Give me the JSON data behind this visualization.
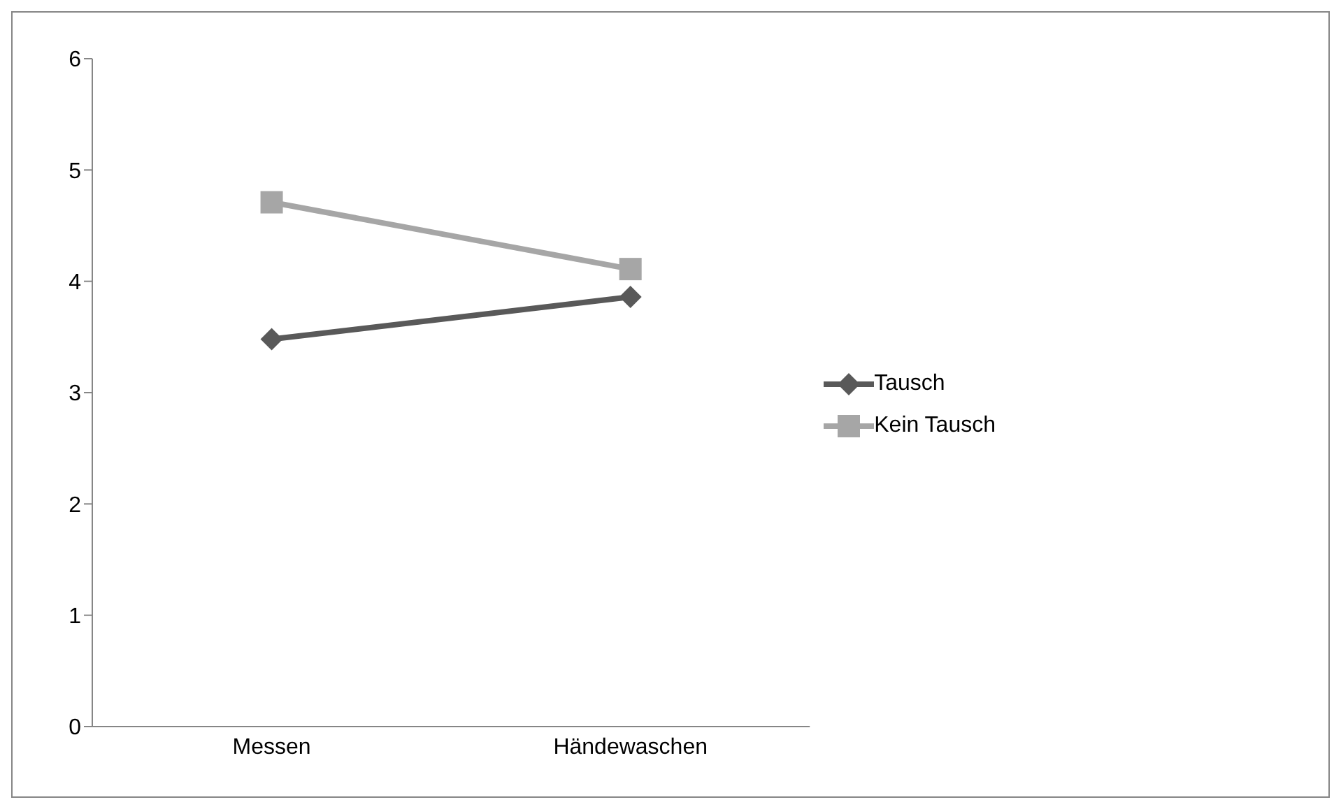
{
  "chart_data": {
    "type": "line",
    "categories": [
      "Messen",
      "Händewaschen"
    ],
    "series": [
      {
        "name": "Tausch",
        "color": "#595959",
        "values": [
          3.48,
          3.86
        ],
        "marker": "diamond"
      },
      {
        "name": "Kein Tausch",
        "color": "#a6a6a6",
        "values": [
          4.71,
          4.11
        ],
        "marker": "square"
      }
    ],
    "ylim": [
      0,
      6
    ],
    "yticks": [
      0,
      1,
      2,
      3,
      4,
      5,
      6
    ],
    "grid": false,
    "legend": "right",
    "line_style": "solid"
  }
}
